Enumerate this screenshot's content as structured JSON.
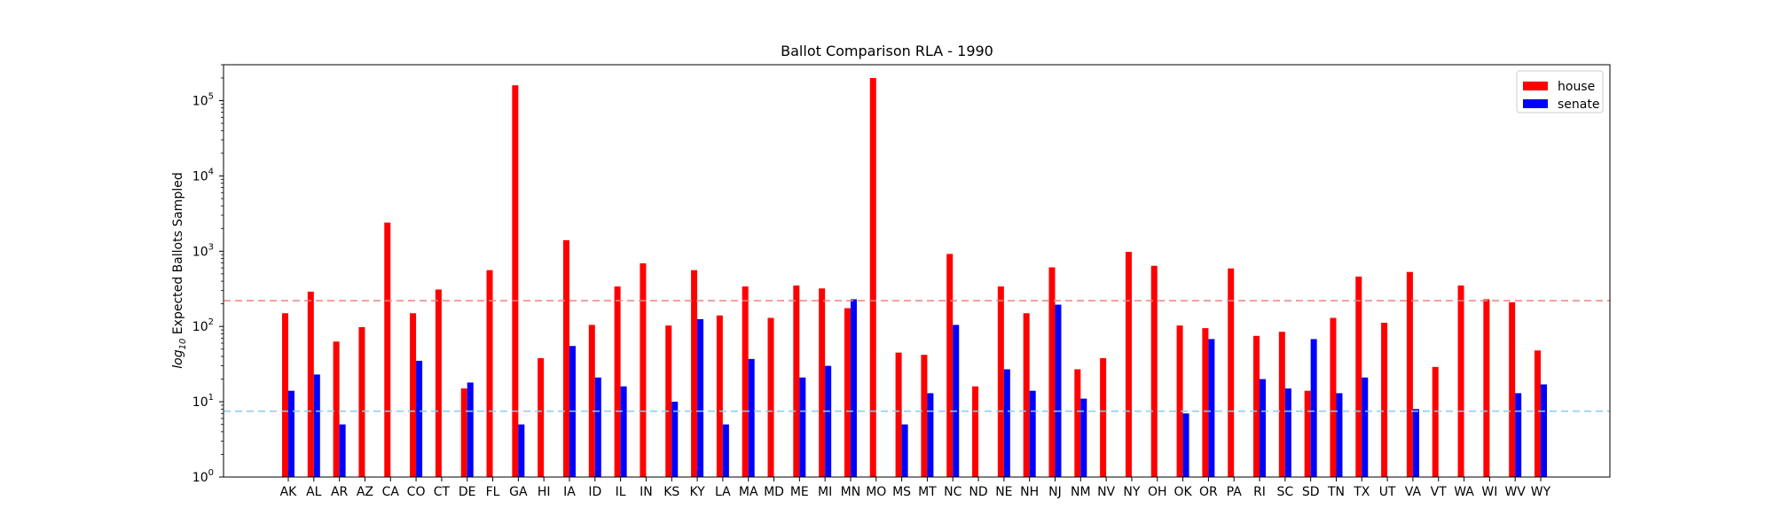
{
  "chart_data": {
    "type": "bar",
    "title": "Ballot Comparison RLA - 1990",
    "xlabel": "",
    "ylabel_prefix": "log",
    "ylabel_subscript": "10",
    "ylabel_suffix": " Expected Ballots Sampled",
    "yscale": "log",
    "ylim": [
      1,
      300000
    ],
    "yticks": [
      {
        "value": 1,
        "base": "10",
        "exp": "0"
      },
      {
        "value": 10,
        "base": "10",
        "exp": "1"
      },
      {
        "value": 100,
        "base": "10",
        "exp": "2"
      },
      {
        "value": 1000,
        "base": "10",
        "exp": "3"
      },
      {
        "value": 10000,
        "base": "10",
        "exp": "4"
      },
      {
        "value": 100000,
        "base": "10",
        "exp": "5"
      }
    ],
    "grid": false,
    "legend_position": "top-right",
    "categories": [
      "AK",
      "AL",
      "AR",
      "AZ",
      "CA",
      "CO",
      "CT",
      "DE",
      "FL",
      "GA",
      "HI",
      "IA",
      "ID",
      "IL",
      "IN",
      "KS",
      "KY",
      "LA",
      "MA",
      "MD",
      "ME",
      "MI",
      "MN",
      "MO",
      "MS",
      "MT",
      "NC",
      "ND",
      "NE",
      "NH",
      "NJ",
      "NM",
      "NV",
      "NY",
      "OH",
      "OK",
      "OR",
      "PA",
      "RI",
      "SC",
      "SD",
      "TN",
      "TX",
      "UT",
      "VA",
      "VT",
      "WA",
      "WI",
      "WV",
      "WY"
    ],
    "series": [
      {
        "name": "house",
        "color": "#ff0000",
        "values": [
          150,
          290,
          63,
          98,
          2400,
          150,
          310,
          15,
          560,
          160000,
          38,
          1400,
          105,
          340,
          690,
          103,
          560,
          140,
          340,
          130,
          350,
          320,
          175,
          200000,
          45,
          42,
          920,
          16,
          340,
          150,
          610,
          27,
          38,
          980,
          640,
          103,
          95,
          590,
          75,
          85,
          14,
          130,
          460,
          112,
          530,
          29,
          350,
          230,
          210,
          48
        ]
      },
      {
        "name": "senate",
        "color": "#0000ff",
        "values": [
          14,
          23,
          5,
          null,
          null,
          35,
          null,
          18,
          null,
          5,
          null,
          55,
          21,
          16,
          null,
          10,
          125,
          5,
          37,
          null,
          21,
          30,
          230,
          null,
          5,
          13,
          105,
          null,
          27,
          14,
          195,
          11,
          null,
          null,
          null,
          7,
          68,
          null,
          20,
          15,
          68,
          13,
          21,
          null,
          8,
          null,
          null,
          null,
          13,
          17
        ]
      }
    ],
    "reference_lines": [
      {
        "value": 220,
        "color": "#f08080",
        "style": "dashed"
      },
      {
        "value": 7.5,
        "color": "#87ceeb",
        "style": "dashed"
      }
    ]
  }
}
